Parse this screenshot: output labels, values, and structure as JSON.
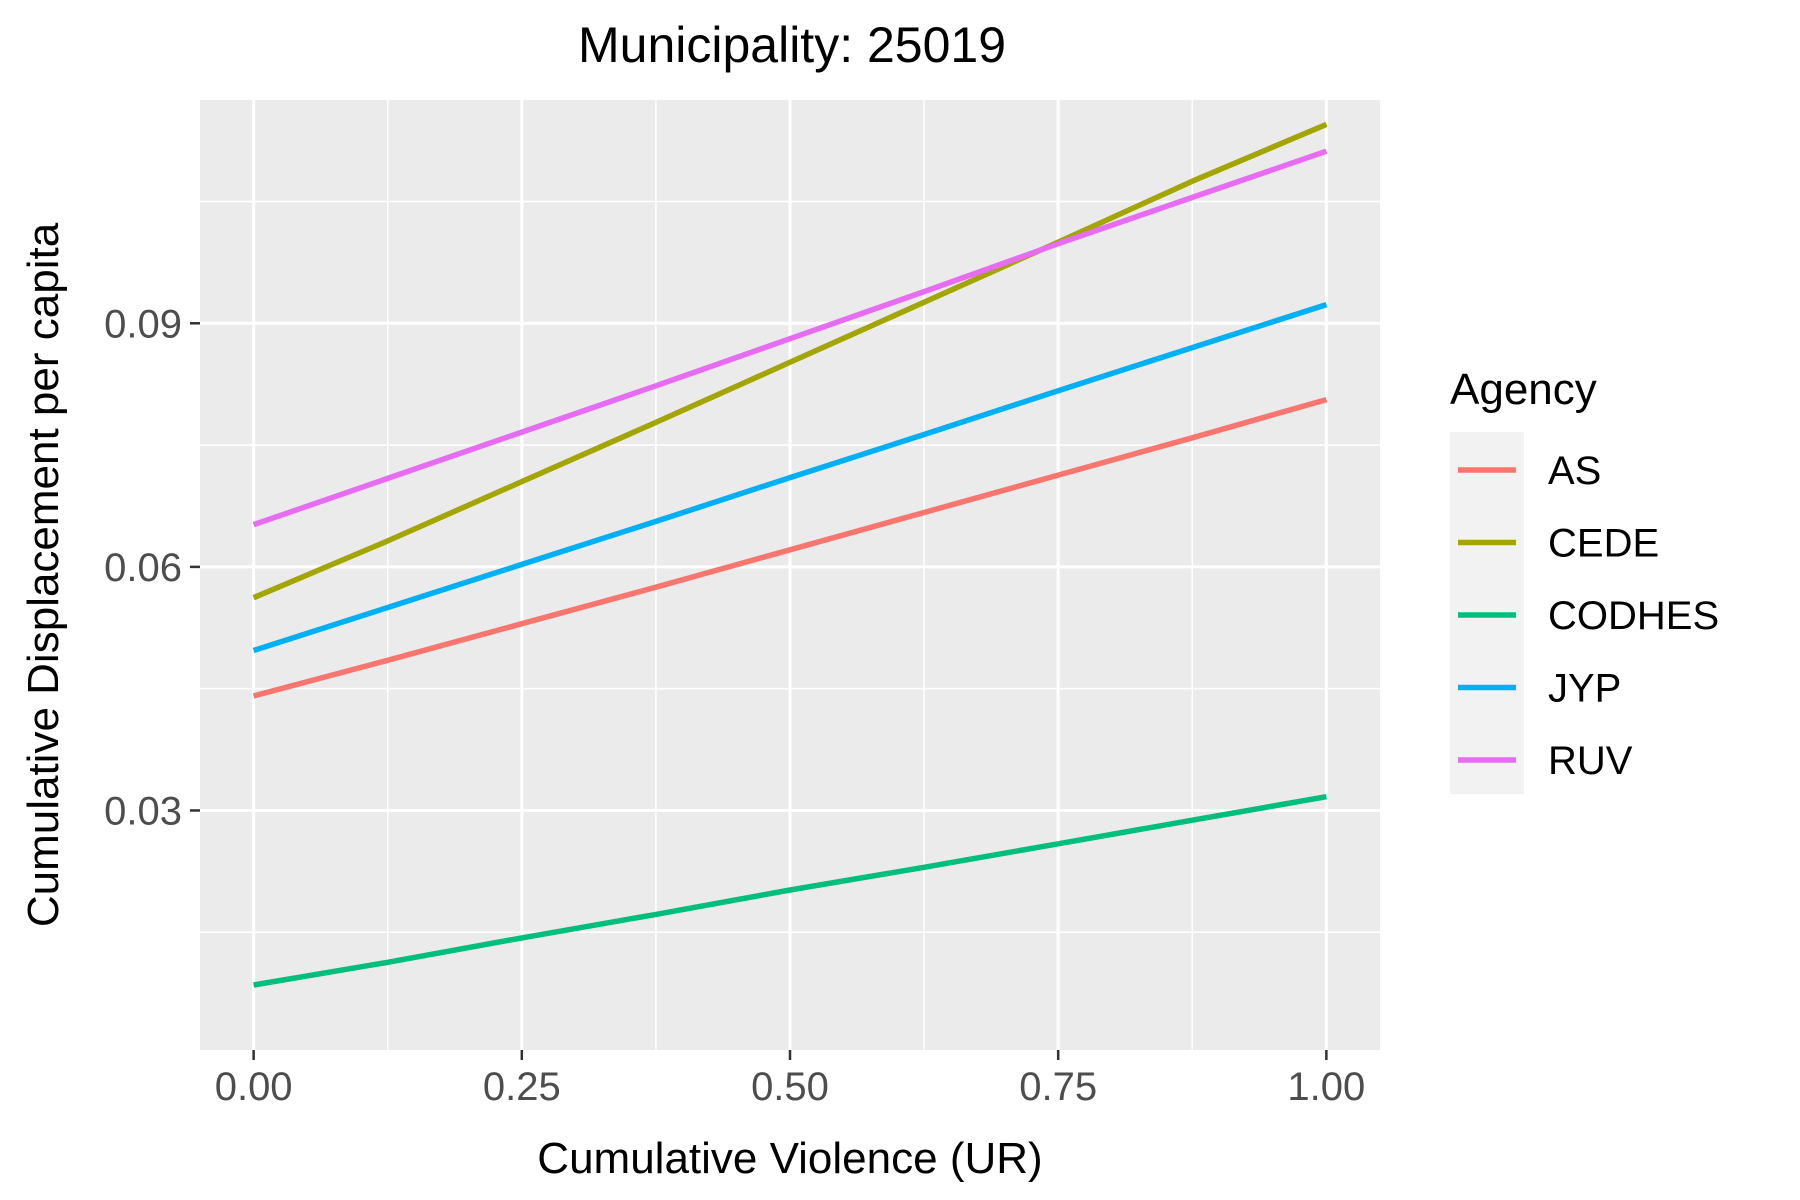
{
  "chart_data": {
    "type": "line",
    "title": "Municipality: 25019",
    "xlabel": "Cumulative Violence (UR)",
    "ylabel": "Cumulative Displacement per capita",
    "xlim": [
      -0.05,
      1.05
    ],
    "ylim": [
      0.0005,
      0.1175
    ],
    "x_ticks": [
      0.0,
      0.25,
      0.5,
      0.75,
      1.0
    ],
    "x_tick_labels": [
      "0.00",
      "0.25",
      "0.50",
      "0.75",
      "1.00"
    ],
    "y_ticks": [
      0.03,
      0.06,
      0.09
    ],
    "y_tick_labels": [
      "0.03",
      "0.06",
      "0.09"
    ],
    "grid": true,
    "legend_position": "right",
    "legend_title": "Agency",
    "x": [
      0.0,
      0.125,
      0.25,
      0.375,
      0.5,
      0.625,
      0.75,
      0.875,
      1.0
    ],
    "series": [
      {
        "name": "AS",
        "color": "#F8766D",
        "values": [
          0.0441,
          0.0485,
          0.053,
          0.0575,
          0.0621,
          0.0667,
          0.0713,
          0.0759,
          0.0806
        ]
      },
      {
        "name": "CEDE",
        "color": "#A3A500",
        "values": [
          0.0562,
          0.0632,
          0.0705,
          0.0778,
          0.0852,
          0.0926,
          0.1,
          0.1075,
          0.1145
        ]
      },
      {
        "name": "CODHES",
        "color": "#00BF7D",
        "values": [
          0.0085,
          0.0113,
          0.0143,
          0.0172,
          0.0202,
          0.023,
          0.0259,
          0.0288,
          0.0317
        ]
      },
      {
        "name": "JYP",
        "color": "#00B0F6",
        "values": [
          0.0497,
          0.055,
          0.0603,
          0.0656,
          0.071,
          0.0763,
          0.0817,
          0.087,
          0.0923
        ]
      },
      {
        "name": "RUV",
        "color": "#E76BF3",
        "values": [
          0.0652,
          0.0709,
          0.0766,
          0.0823,
          0.0881,
          0.0939,
          0.0998,
          0.1055,
          0.1112
        ]
      }
    ]
  }
}
